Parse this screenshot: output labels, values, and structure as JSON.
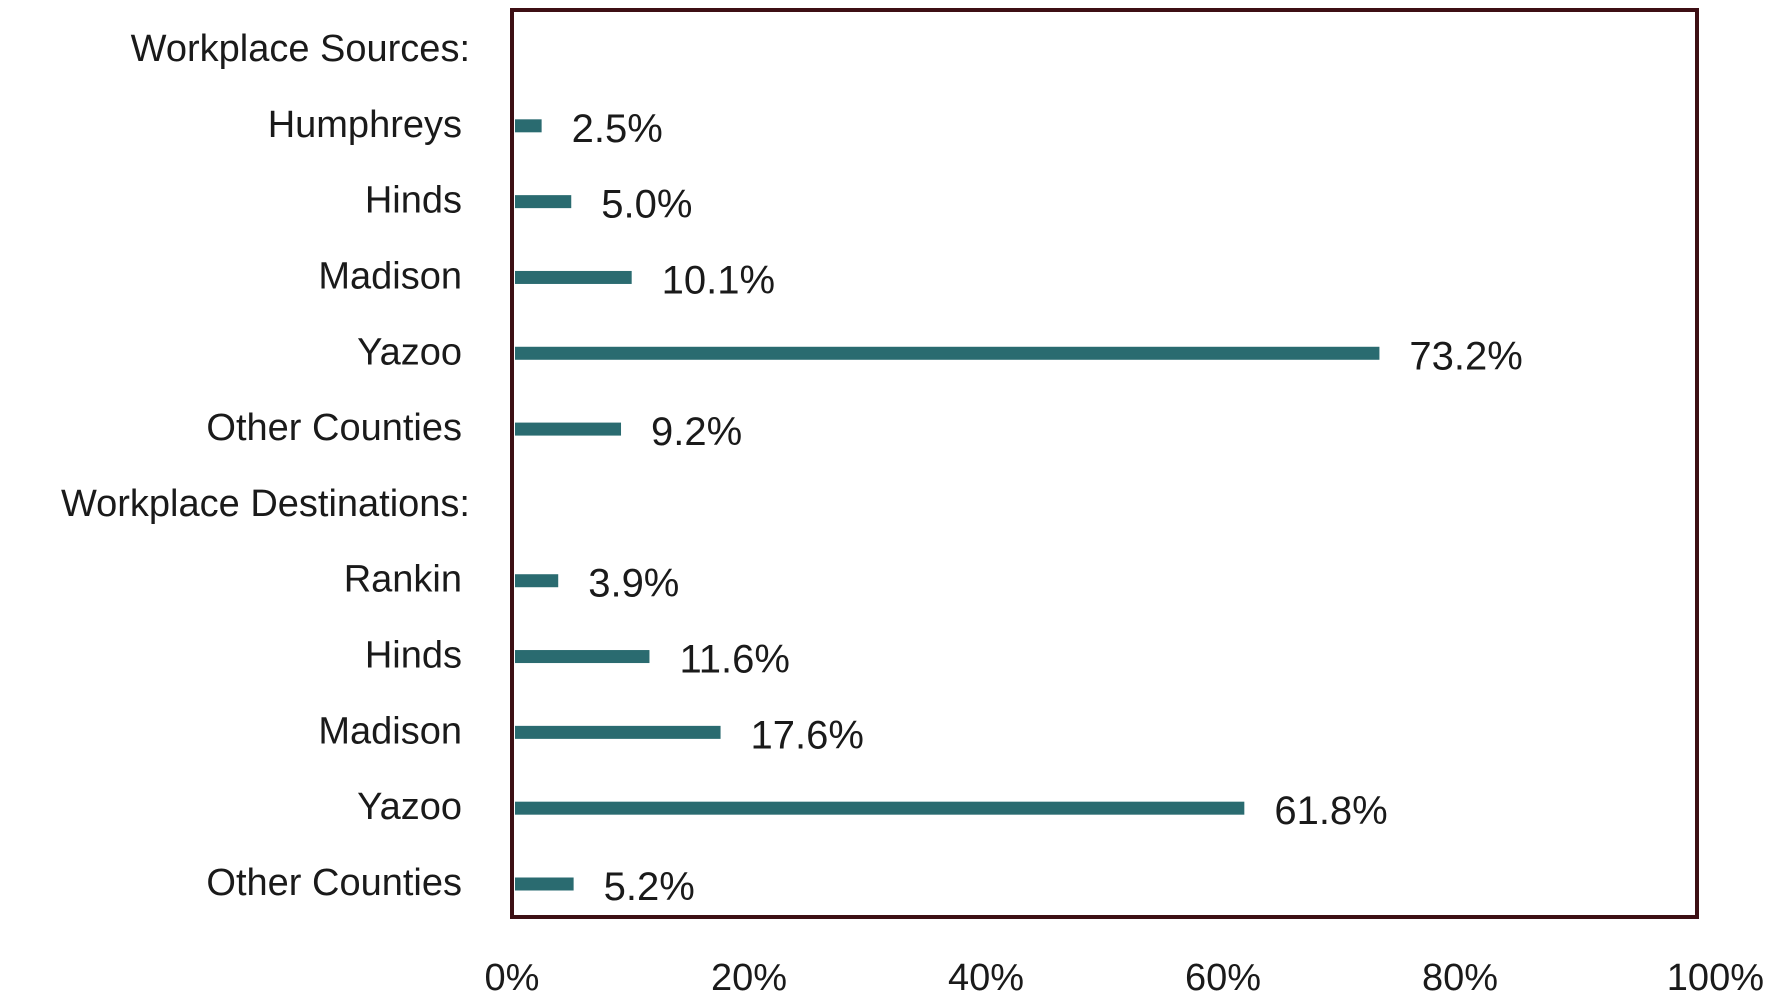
{
  "chart_data": {
    "type": "bar",
    "orientation": "horizontal",
    "title": "",
    "xlabel": "",
    "ylabel": "",
    "xlim": [
      0,
      100
    ],
    "x_ticks": [
      "0%",
      "20%",
      "40%",
      "60%",
      "80%",
      "100%"
    ],
    "x_tick_values": [
      0,
      20,
      40,
      60,
      80,
      100
    ],
    "grid": false,
    "legend": "none",
    "bar_color": "#2a6b70",
    "frame_color": "#3d0f14",
    "rows": [
      {
        "label": "Workplace Sources:",
        "value": null,
        "value_label": "",
        "is_header": true
      },
      {
        "label": "Humphreys",
        "value": 2.5,
        "value_label": "2.5%",
        "is_header": false
      },
      {
        "label": "Hinds",
        "value": 5.0,
        "value_label": "5.0%",
        "is_header": false
      },
      {
        "label": "Madison",
        "value": 10.1,
        "value_label": "10.1%",
        "is_header": false
      },
      {
        "label": "Yazoo",
        "value": 73.2,
        "value_label": "73.2%",
        "is_header": false
      },
      {
        "label": "Other Counties",
        "value": 9.2,
        "value_label": "9.2%",
        "is_header": false
      },
      {
        "label": "Workplace Destinations:",
        "value": null,
        "value_label": "",
        "is_header": true
      },
      {
        "label": "Rankin",
        "value": 3.9,
        "value_label": "3.9%",
        "is_header": false
      },
      {
        "label": "Hinds",
        "value": 11.6,
        "value_label": "11.6%",
        "is_header": false
      },
      {
        "label": "Madison",
        "value": 17.6,
        "value_label": "17.6%",
        "is_header": false
      },
      {
        "label": "Yazoo",
        "value": 61.8,
        "value_label": "61.8%",
        "is_header": false
      },
      {
        "label": "Other Counties",
        "value": 5.2,
        "value_label": "5.2%",
        "is_header": false
      }
    ]
  }
}
